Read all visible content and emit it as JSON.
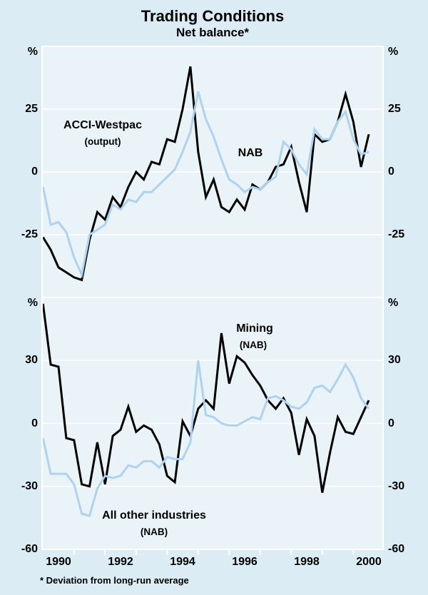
{
  "page": {
    "title": "Trading Conditions",
    "subtitle": "Net balance*",
    "footnote": "* Deviation from long-run average"
  },
  "colors": {
    "background": "#dcecf5",
    "plot_background": "#e9f3f8",
    "grid": "#ffffff",
    "black_series": "#000000",
    "blue_series": "#aed2ef",
    "text": "#000000"
  },
  "x_axis": {
    "start": 1989.5,
    "step": 0.25,
    "range": [
      1989.45,
      2000.45
    ],
    "year_labels": [
      "1990",
      "1992",
      "1994",
      "1996",
      "1998",
      "2000"
    ],
    "year_values": [
      1990,
      1992,
      1994,
      1996,
      1998,
      2000
    ],
    "minor_ticks": [
      1990.5,
      1991.5,
      1992.5,
      1993.5,
      1994.5,
      1995.5,
      1996.5,
      1997.5,
      1998.5,
      1999.5
    ]
  },
  "chart_data": [
    {
      "type": "line",
      "panel": "top",
      "unit": "%",
      "ylim": [
        -50,
        50
      ],
      "yticks": [
        25,
        0,
        -25
      ],
      "ytick_labels": [
        "25",
        "0",
        "-25"
      ],
      "grid": true,
      "series": [
        {
          "name": "ACCI-Westpac (output)",
          "label": "ACCI-Westpac",
          "sublabel": "(output)",
          "color_key": "black_series",
          "x_start": 1989.5,
          "x_step": 0.25,
          "values": [
            -26,
            -31,
            -38,
            -40,
            -42,
            -43,
            -27,
            -16,
            -19,
            -10,
            -14,
            -6,
            0,
            -3,
            4,
            3,
            13,
            12,
            25,
            42,
            8,
            -10,
            -3,
            -14,
            -16,
            -11,
            -15,
            -5,
            -7,
            -4,
            2,
            3,
            10,
            -4,
            -16,
            15,
            12,
            13,
            20,
            31,
            20,
            2,
            15
          ]
        },
        {
          "name": "NAB",
          "label": "NAB",
          "color_key": "blue_series",
          "x_start": 1989.5,
          "x_step": 0.25,
          "values": [
            -6,
            -21,
            -20,
            -24,
            -34,
            -41,
            -25,
            -23,
            -21,
            -13,
            -15,
            -11,
            -12,
            -8,
            -8,
            -5,
            -2,
            1,
            8,
            16,
            32,
            21,
            14,
            5,
            -3,
            -5,
            -8,
            -6,
            -7,
            -4,
            -2,
            12,
            9,
            3,
            -1,
            17,
            13,
            13,
            20,
            24,
            13,
            7,
            8
          ]
        }
      ]
    },
    {
      "type": "line",
      "panel": "bottom",
      "unit": "%",
      "ylim": [
        -60,
        60
      ],
      "yticks": [
        30,
        0,
        -30,
        -60
      ],
      "ytick_labels": [
        "30",
        "0",
        "-30",
        "-60"
      ],
      "grid": true,
      "series": [
        {
          "name": "Mining (NAB)",
          "label": "Mining",
          "sublabel": "(NAB)",
          "color_key": "black_series",
          "x_start": 1989.5,
          "x_step": 0.25,
          "values": [
            57,
            28,
            27,
            -7,
            -8,
            -29,
            -30,
            -9,
            -29,
            -6,
            -3,
            8,
            -4,
            -1,
            -3,
            -10,
            -25,
            -28,
            1,
            -6,
            7,
            11,
            7,
            43,
            19,
            32,
            29,
            23,
            18,
            11,
            7,
            12,
            5,
            -15,
            2,
            -6,
            -33,
            -14,
            3,
            -4,
            -5,
            3,
            11
          ]
        },
        {
          "name": "All other industries (NAB)",
          "label": "All other industries",
          "sublabel": "(NAB)",
          "color_key": "blue_series",
          "x_start": 1989.5,
          "x_step": 0.25,
          "values": [
            -7,
            -24,
            -24,
            -24,
            -29,
            -43,
            -44,
            -31,
            -25,
            -26,
            -25,
            -20,
            -21,
            -18,
            -18,
            -21,
            -16,
            -17,
            -17,
            -9,
            30,
            4,
            3,
            0,
            -1,
            -1,
            1,
            3,
            2,
            12,
            13,
            11,
            8,
            7,
            10,
            17,
            18,
            15,
            21,
            28,
            22,
            12,
            7
          ]
        }
      ]
    }
  ]
}
